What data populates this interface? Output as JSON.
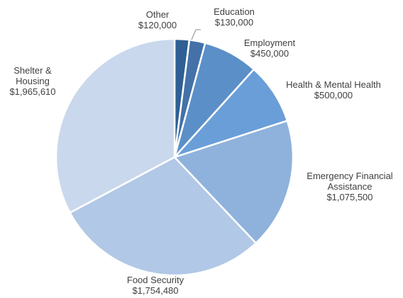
{
  "chart_data": {
    "type": "pie",
    "title": "",
    "start": "12 o'clock, clockwise",
    "legend": "none (category labels beside slices)",
    "slices": [
      {
        "label_lines": [
          "Other"
        ],
        "value_text": "$120,000",
        "value": 120000,
        "color": "#2f5f93"
      },
      {
        "label_lines": [
          "Education"
        ],
        "value_text": "$130,000",
        "value": 130000,
        "color": "#4471a8"
      },
      {
        "label_lines": [
          "Employment"
        ],
        "value_text": "$450,000",
        "value": 450000,
        "color": "#5b8fc8"
      },
      {
        "label_lines": [
          "Health & Mental Health"
        ],
        "value_text": "$500,000",
        "value": 500000,
        "color": "#6a9ed8"
      },
      {
        "label_lines": [
          "Emergency Financial",
          "Assistance"
        ],
        "value_text": "$1,075,500",
        "value": 1075500,
        "color": "#8fb2dc"
      },
      {
        "label_lines": [
          "Food Security"
        ],
        "value_text": "$1,754,480",
        "value": 1754480,
        "color": "#b1c8e6"
      },
      {
        "label_lines": [
          "Shelter &",
          "Housing"
        ],
        "value_text": "$1,965,610",
        "value": 1965610,
        "color": "#c9d8ec"
      }
    ]
  }
}
